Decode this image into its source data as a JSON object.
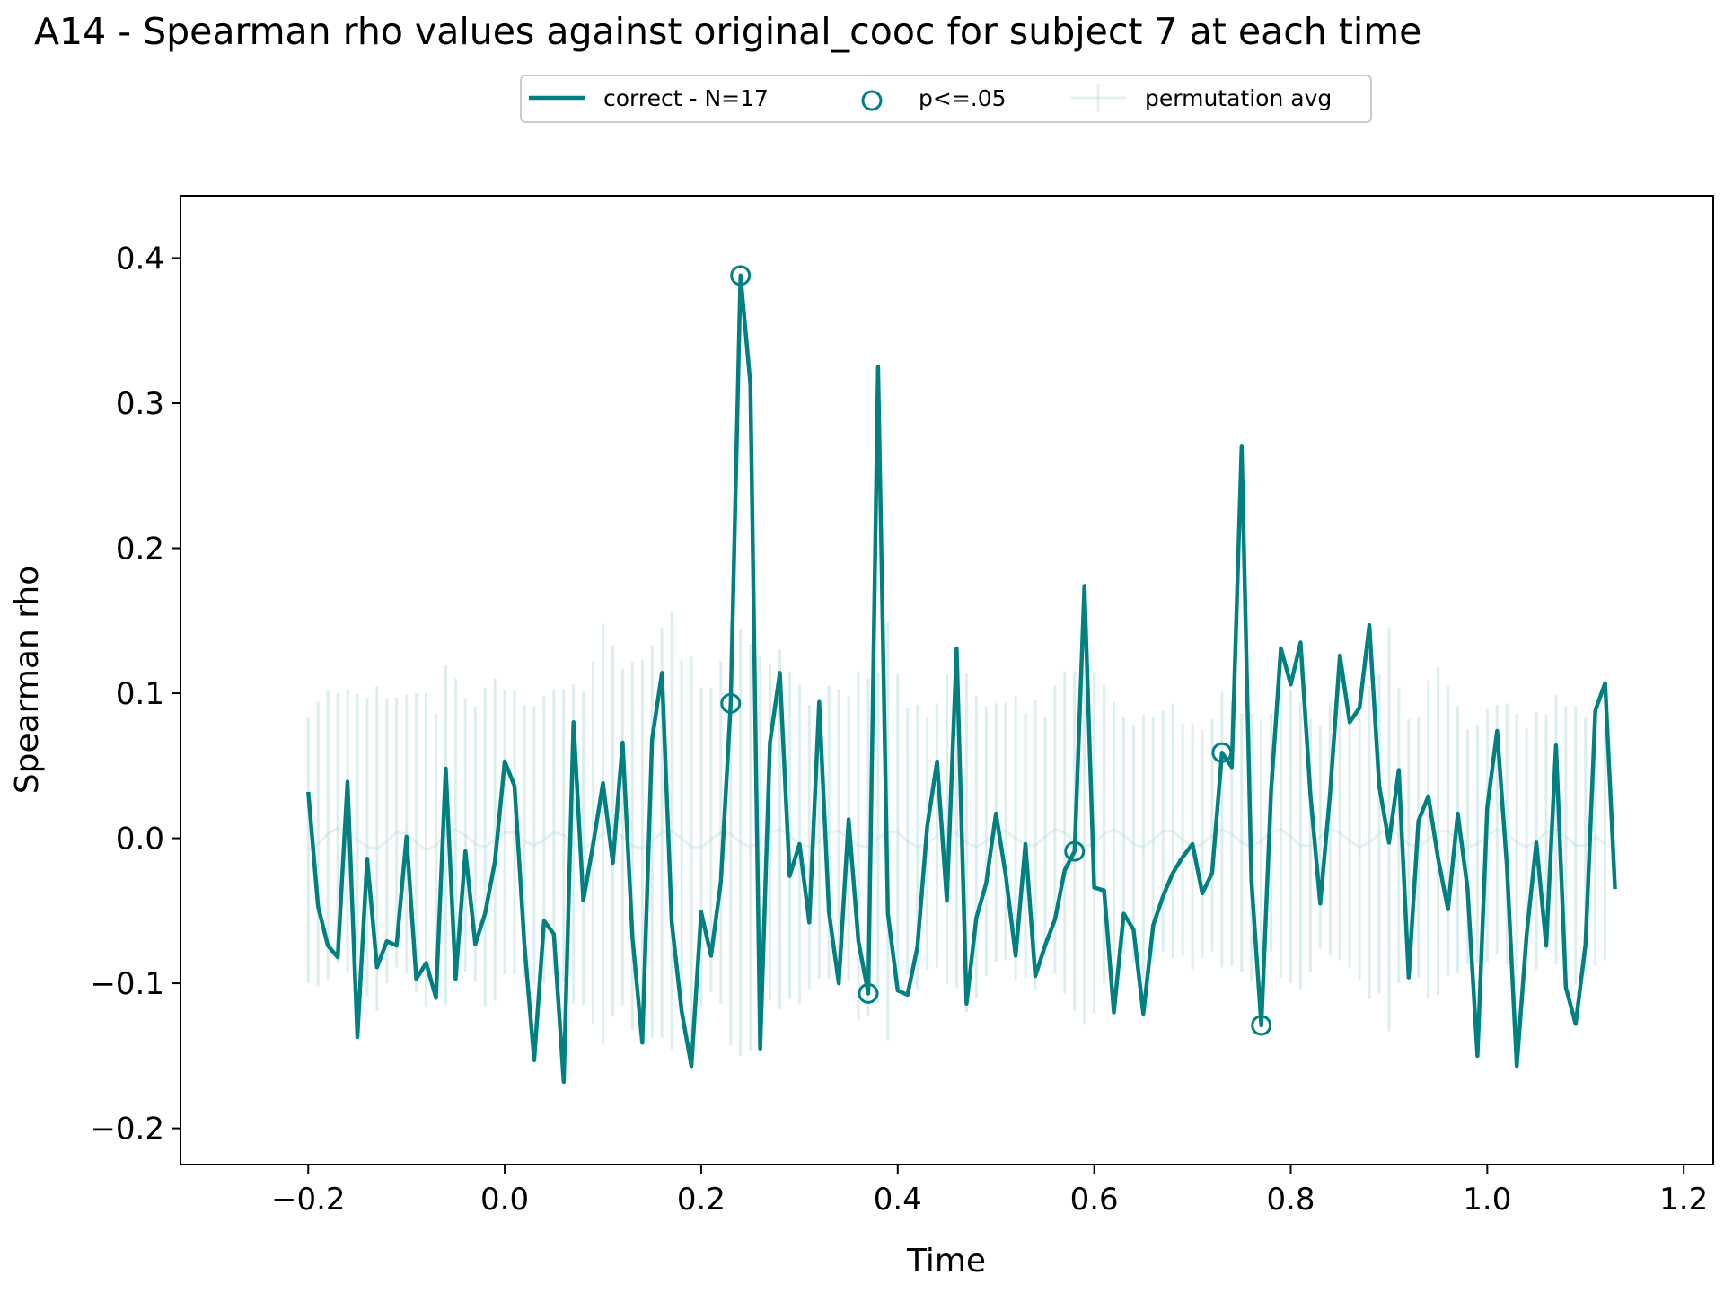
{
  "chart_data": {
    "type": "line",
    "title": "A14 - Spearman rho values against original_cooc for subject 7 at each time",
    "xlabel": "Time",
    "ylabel": "Spearman rho",
    "xlim": [
      -0.33,
      1.23
    ],
    "ylim": [
      -0.225,
      0.443
    ],
    "x_ticks": [
      -0.2,
      0.0,
      0.2,
      0.4,
      0.6,
      0.8,
      1.0,
      1.2
    ],
    "x_tick_labels": [
      "−0.2",
      "0.0",
      "0.2",
      "0.4",
      "0.6",
      "0.8",
      "1.0",
      "1.2"
    ],
    "y_ticks": [
      -0.2,
      -0.1,
      0.0,
      0.1,
      0.2,
      0.3,
      0.4
    ],
    "y_tick_labels": [
      "−0.2",
      "−0.1",
      "0.0",
      "0.1",
      "0.2",
      "0.3",
      "0.4"
    ],
    "grid": false,
    "legend": {
      "placement": "top-center, above plot",
      "entries": [
        {
          "label": "correct - N=17",
          "kind": "line"
        },
        {
          "label": "p<=.05",
          "kind": "circle-marker"
        },
        {
          "label": "permutation avg",
          "kind": "errorbar"
        }
      ]
    },
    "colors": {
      "correct": "#008080",
      "permutation": "#b2dada"
    },
    "x_start": -0.2,
    "x_step": 0.01,
    "series": [
      {
        "name": "correct - N=17",
        "values": [
          0.032,
          -0.047,
          -0.074,
          -0.082,
          0.039,
          -0.137,
          -0.014,
          -0.089,
          -0.071,
          -0.074,
          0.001,
          -0.097,
          -0.086,
          -0.11,
          0.048,
          -0.097,
          -0.009,
          -0.073,
          -0.052,
          -0.016,
          0.053,
          0.036,
          -0.073,
          -0.153,
          -0.057,
          -0.066,
          -0.168,
          0.08,
          -0.043,
          -0.004,
          0.038,
          -0.017,
          0.066,
          -0.068,
          -0.141,
          0.068,
          0.114,
          -0.058,
          -0.119,
          -0.157,
          -0.051,
          -0.081,
          -0.03,
          0.093,
          0.388,
          0.313,
          -0.145,
          0.066,
          0.114,
          -0.026,
          -0.004,
          -0.058,
          0.094,
          -0.051,
          -0.1,
          0.013,
          -0.071,
          -0.107,
          0.325,
          -0.052,
          -0.105,
          -0.108,
          -0.075,
          0.008,
          0.053,
          -0.043,
          0.131,
          -0.114,
          -0.055,
          -0.031,
          0.017,
          -0.026,
          -0.081,
          -0.004,
          -0.095,
          -0.074,
          -0.056,
          -0.022,
          -0.009,
          0.174,
          -0.034,
          -0.036,
          -0.12,
          -0.052,
          -0.063,
          -0.121,
          -0.06,
          -0.04,
          -0.024,
          -0.013,
          -0.004,
          -0.038,
          -0.024,
          0.059,
          0.049,
          0.27,
          -0.029,
          -0.129,
          0.033,
          0.131,
          0.106,
          0.135,
          0.03,
          -0.045,
          0.031,
          0.126,
          0.08,
          0.09,
          0.147,
          0.036,
          -0.003,
          0.047,
          -0.096,
          0.012,
          0.029,
          -0.014,
          -0.049,
          0.017,
          -0.035,
          -0.15,
          0.021,
          0.074,
          -0.019,
          -0.157,
          -0.067,
          -0.003,
          -0.074,
          0.064,
          -0.103,
          -0.128,
          -0.073,
          0.088,
          0.107,
          -0.035
        ]
      },
      {
        "name": "permutation avg",
        "values": [
          -0.008,
          -0.004,
          0.003,
          0.007,
          0.005,
          -0.001,
          -0.006,
          -0.007,
          -0.002,
          0.004,
          0.003,
          -0.003,
          -0.008,
          -0.005,
          0.002,
          0.006,
          0.002,
          -0.004,
          -0.006,
          -0.001,
          0.004,
          0.004,
          -0.002,
          -0.005,
          -0.001,
          0.004,
          0.002,
          -0.004,
          -0.007,
          -0.003,
          0.003,
          0.005,
          0.001,
          -0.005,
          -0.007,
          -0.002,
          0.004,
          0.005,
          0.0,
          -0.006,
          -0.006,
          -0.001,
          0.004,
          0.003,
          -0.003,
          -0.006,
          -0.002,
          0.004,
          0.006,
          0.002,
          -0.004,
          -0.006,
          -0.002,
          0.004,
          0.005,
          0.0,
          -0.005,
          -0.006,
          0.0,
          0.005,
          0.004,
          -0.002,
          -0.006,
          -0.004,
          0.002,
          0.006,
          0.003,
          -0.003,
          -0.006,
          -0.002,
          0.004,
          0.005,
          0.0,
          -0.005,
          -0.005,
          0.001,
          0.006,
          0.004,
          -0.002,
          -0.006,
          -0.003,
          0.003,
          0.006,
          0.002,
          -0.004,
          -0.006,
          -0.001,
          0.005,
          0.005,
          -0.001,
          -0.006,
          -0.004,
          0.002,
          0.006,
          0.003,
          -0.003,
          -0.006,
          -0.002,
          0.004,
          0.006,
          0.001,
          -0.005,
          -0.005,
          0.001,
          0.006,
          0.004,
          -0.002,
          -0.006,
          -0.003,
          0.003,
          0.006,
          0.002,
          -0.004,
          -0.006,
          -0.001,
          0.005,
          0.005,
          -0.001,
          -0.006,
          -0.004,
          0.002,
          0.006,
          0.003,
          -0.003,
          -0.006,
          -0.002,
          0.004,
          0.006,
          0.001,
          -0.005,
          -0.005,
          0.001,
          -0.004
        ]
      }
    ],
    "permutation_error": [
      0.092,
      0.098,
      0.1,
      0.093,
      0.098,
      0.1,
      0.103,
      0.112,
      0.098,
      0.093,
      0.096,
      0.103,
      0.108,
      0.091,
      0.117,
      0.104,
      0.094,
      0.095,
      0.11,
      0.111,
      0.098,
      0.098,
      0.094,
      0.096,
      0.099,
      0.098,
      0.101,
      0.11,
      0.108,
      0.125,
      0.145,
      0.128,
      0.116,
      0.127,
      0.13,
      0.135,
      0.141,
      0.151,
      0.123,
      0.131,
      0.11,
      0.105,
      0.118,
      0.146,
      0.147,
      0.14,
      0.128,
      0.116,
      0.124,
      0.113,
      0.11,
      0.098,
      0.095,
      0.101,
      0.098,
      0.098,
      0.12,
      0.116,
      0.114,
      0.144,
      0.109,
      0.092,
      0.098,
      0.087,
      0.091,
      0.107,
      0.106,
      0.117,
      0.104,
      0.093,
      0.089,
      0.089,
      0.098,
      0.091,
      0.1,
      0.083,
      0.099,
      0.111,
      0.117,
      0.122,
      0.118,
      0.103,
      0.088,
      0.082,
      0.082,
      0.091,
      0.085,
      0.083,
      0.088,
      0.08,
      0.085,
      0.079,
      0.08,
      0.095,
      0.091,
      0.089,
      0.092,
      0.084,
      0.082,
      0.102,
      0.101,
      0.099,
      0.087,
      0.077,
      0.087,
      0.088,
      0.087,
      0.092,
      0.108,
      0.11,
      0.139,
      0.102,
      0.086,
      0.09,
      0.11,
      0.113,
      0.1,
      0.092,
      0.081,
      0.082,
      0.087,
      0.086,
      0.09,
      0.089,
      0.082,
      0.089,
      0.081,
      0.093,
      0.09,
      0.096,
      0.089,
      0.089,
      0.08,
      0.082
    ],
    "significant_x": [
      0.23,
      0.24,
      0.37,
      0.58,
      0.73,
      0.77
    ]
  }
}
